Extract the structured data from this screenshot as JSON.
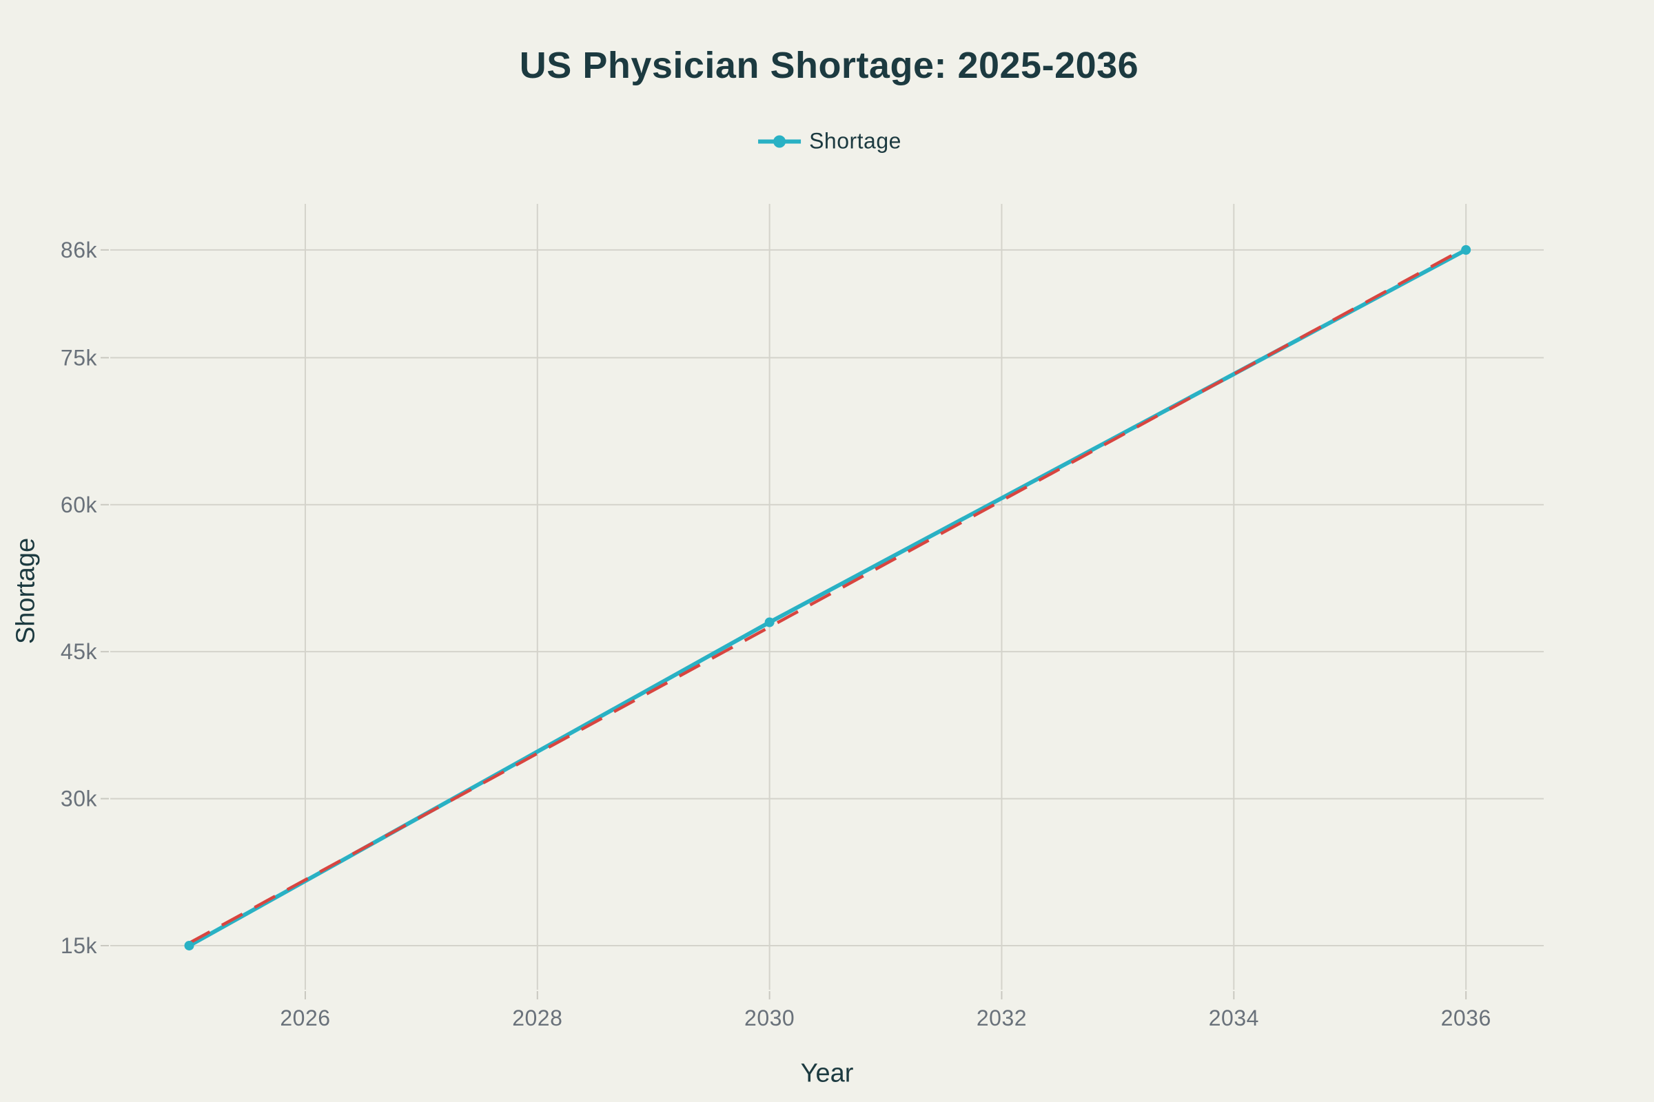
{
  "page": {
    "background_color": "#f1f1ea"
  },
  "chart_data": {
    "type": "line",
    "title": "US Physician Shortage: 2025-2036",
    "xlabel": "Year",
    "ylabel": "Shortage",
    "grid": true,
    "legend": {
      "position": "top-center",
      "entries": [
        {
          "label": "Shortage",
          "color": "#29b1c4",
          "marker": "line-with-dot"
        }
      ]
    },
    "x_ticks": {
      "values": [
        2026,
        2028,
        2030,
        2032,
        2034,
        2036
      ],
      "labels": [
        "2026",
        "2028",
        "2030",
        "2032",
        "2034",
        "2036"
      ]
    },
    "y_ticks": {
      "values": [
        15000,
        30000,
        45000,
        60000,
        75000,
        86000
      ],
      "labels": [
        "15k",
        "30k",
        "45k",
        "60k",
        "75k",
        "86k"
      ]
    },
    "xlim": [
      2024.32,
      2036.67
    ],
    "ylim": [
      10500,
      90700
    ],
    "series": [
      {
        "name": "Shortage",
        "mode": "line+markers",
        "color": "#29b1c4",
        "dash": "solid",
        "show_in_legend": true,
        "x": [
          2025,
          2030,
          2036
        ],
        "y": [
          15000,
          48000,
          86000
        ]
      },
      {
        "name": "",
        "role": "trendline",
        "mode": "line",
        "color": "#d84540",
        "dash": "dashed",
        "show_in_legend": false,
        "x": [
          2025,
          2036
        ],
        "y": [
          15264,
          86220
        ]
      }
    ],
    "style": {
      "grid_color": "#d4d3cb",
      "tick_color": "#c9c8c0",
      "tick_label_color": "#69717a",
      "text_color": "#1c3a40"
    }
  }
}
